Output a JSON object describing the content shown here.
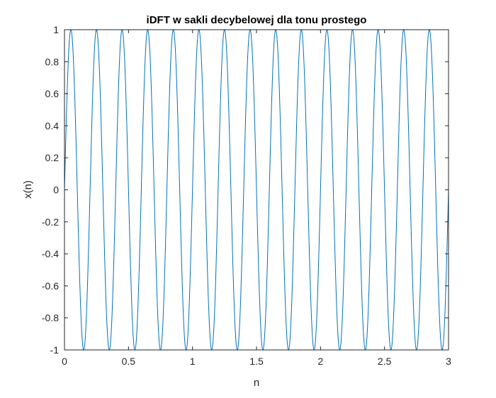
{
  "chart_data": {
    "type": "line",
    "title": "iDFT w  sakli decybelowej dla tonu prostego",
    "xlabel": "n",
    "ylabel": "x(n)",
    "xlim": [
      0,
      3
    ],
    "ylim": [
      -1,
      1
    ],
    "x_ticks": [
      0,
      0.5,
      1,
      1.5,
      2,
      2.5,
      3
    ],
    "x_tick_labels": [
      "0",
      "0.5",
      "1",
      "1.5",
      "2",
      "2.5",
      "3"
    ],
    "y_ticks": [
      -1,
      -0.8,
      -0.6,
      -0.4,
      -0.2,
      0,
      0.2,
      0.4,
      0.6,
      0.8,
      1
    ],
    "y_tick_labels": [
      "-1",
      "-0.8",
      "-0.6",
      "-0.4",
      "-0.2",
      "0",
      "0.2",
      "0.4",
      "0.6",
      "0.8",
      "1"
    ],
    "grid": false,
    "series": [
      {
        "function": "sine",
        "amplitude": 1,
        "frequency": 5,
        "phase": 0,
        "x_range": [
          0,
          3
        ],
        "color": "#0072BD"
      }
    ]
  }
}
